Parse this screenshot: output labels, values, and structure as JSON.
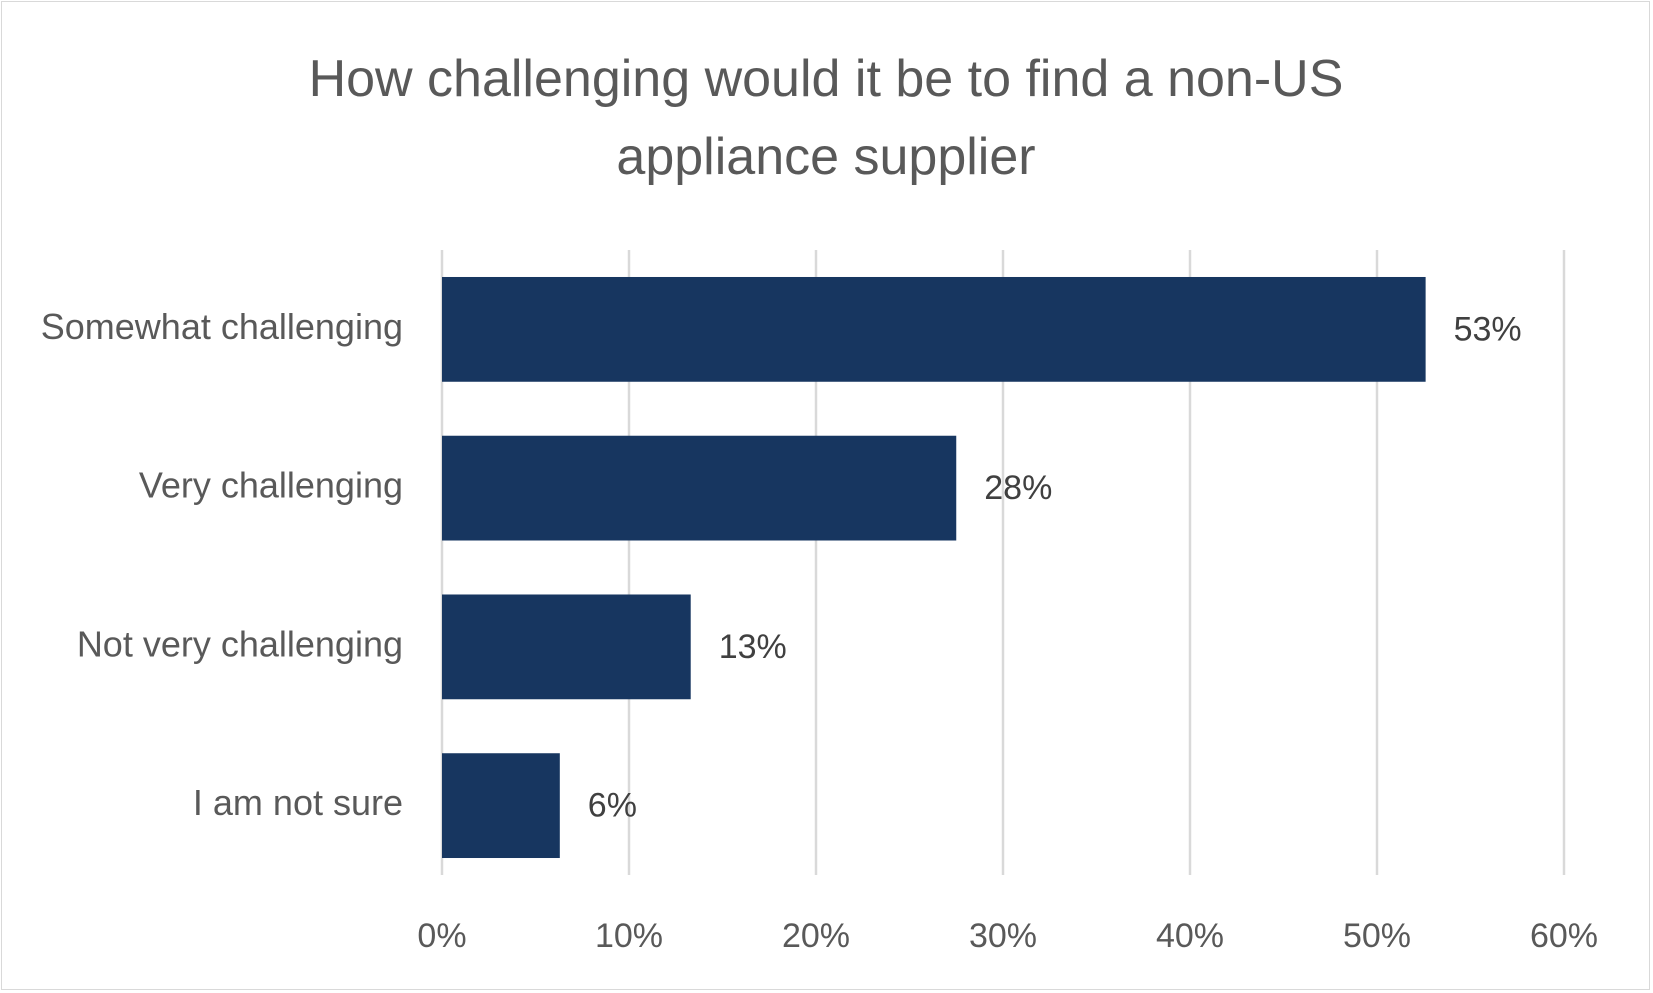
{
  "chart_data": {
    "type": "bar",
    "orientation": "horizontal",
    "title": "How challenging would it be to find a non-US appliance supplier",
    "categories": [
      "Somewhat challenging",
      "Very challenging",
      "Not very challenging",
      "I am not sure"
    ],
    "values": [
      52.6,
      27.5,
      13.3,
      6.3
    ],
    "value_labels": [
      "53%",
      "28%",
      "13%",
      "6%"
    ],
    "color": "#173660",
    "xlim": [
      0,
      60
    ],
    "xticks": [
      {
        "value": 0,
        "label": "0%"
      },
      {
        "value": 10,
        "label": "10%"
      },
      {
        "value": 20,
        "label": "20%"
      },
      {
        "value": 30,
        "label": "30%"
      },
      {
        "value": 40,
        "label": "40%"
      },
      {
        "value": 50,
        "label": "50%"
      },
      {
        "value": 60,
        "label": "60%"
      }
    ],
    "grid": true
  }
}
